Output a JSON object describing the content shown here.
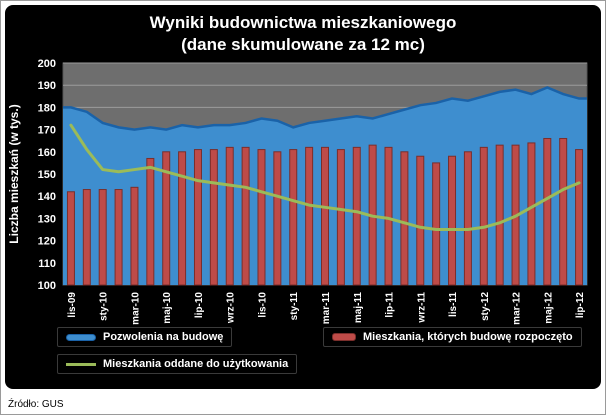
{
  "frame": {
    "source": "Źródło: GUS"
  },
  "chart_data": {
    "type": "combo",
    "title": "Wyniki budownictwa mieszkaniowego",
    "subtitle": "(dane skumulowane za 12 mc)",
    "ylabel": "Liczba mieszkań (w tys.)",
    "ylim": [
      100,
      200
    ],
    "ytick_step": 10,
    "grid": true,
    "legend_position": "bottom",
    "plot": {
      "bg": "#6E6E6E",
      "grid": "#9C9C9C",
      "border": "#555555"
    },
    "categories": [
      "lis-09",
      "gru-09",
      "sty-10",
      "lut-10",
      "mar-10",
      "kwi-10",
      "maj-10",
      "cze-10",
      "lip-10",
      "sie-10",
      "wrz-10",
      "paź-10",
      "lis-10",
      "gru-10",
      "sty-11",
      "lut-11",
      "mar-11",
      "kwi-11",
      "maj-11",
      "cze-11",
      "lip-11",
      "sie-11",
      "wrz-11",
      "paź-11",
      "lis-11",
      "gru-11",
      "sty-12",
      "lut-12",
      "mar-12",
      "kwi-12",
      "maj-12",
      "cze-12",
      "lip-12"
    ],
    "xtick_labels": [
      "lis-09",
      "sty-10",
      "mar-10",
      "maj-10",
      "lip-10",
      "wrz-10",
      "lis-10",
      "sty-11",
      "mar-11",
      "maj-11",
      "lip-11",
      "wrz-11",
      "lis-11",
      "sty-12",
      "mar-12",
      "maj-12",
      "lip-12"
    ],
    "series": [
      {
        "name": "Pozwolenia na budowę",
        "type": "area",
        "color": "#3E8ECF",
        "edge": "#1A62A8",
        "values": [
          180,
          178,
          173,
          171,
          170,
          171,
          170,
          172,
          171,
          172,
          172,
          173,
          175,
          174,
          171,
          173,
          174,
          175,
          176,
          175,
          177,
          179,
          181,
          182,
          184,
          183,
          185,
          187,
          188,
          186,
          189,
          186,
          184
        ]
      },
      {
        "name": "Mieszkania, których budowę rozpoczęto",
        "type": "bar",
        "color": "#BE4B48",
        "edge": "#7A2E2B",
        "values": [
          142,
          143,
          143,
          143,
          144,
          157,
          160,
          160,
          161,
          161,
          162,
          162,
          161,
          160,
          161,
          162,
          162,
          161,
          162,
          163,
          162,
          160,
          158,
          155,
          158,
          160,
          162,
          163,
          163,
          164,
          166,
          166,
          161
        ]
      },
      {
        "name": "Mieszkania oddane do użytkowania",
        "type": "line",
        "color": "#9BBB59",
        "edge": "#9BBB59",
        "values": [
          172,
          161,
          152,
          151,
          152,
          153,
          151,
          149,
          147,
          146,
          145,
          144,
          142,
          140,
          138,
          136,
          135,
          134,
          133,
          131,
          130,
          128,
          126,
          125,
          125,
          125,
          126,
          128,
          131,
          135,
          139,
          143,
          146
        ]
      }
    ]
  }
}
